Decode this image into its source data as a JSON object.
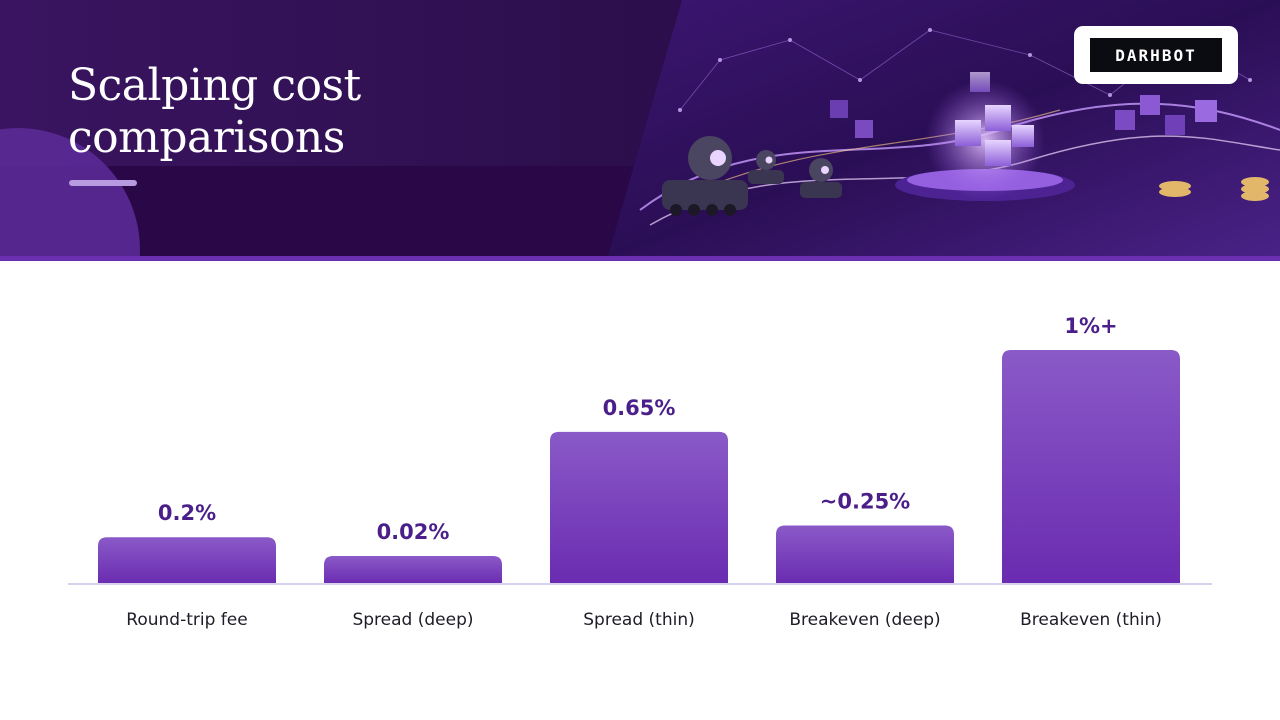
{
  "header": {
    "title_line1": "Scalping cost",
    "title_line2": "comparisons",
    "logo_text": "DARHBOT",
    "colors": {
      "banner": "#2d0f4e",
      "accent": "#6a30b0",
      "underline": "#b79ae0"
    }
  },
  "chart_data": {
    "type": "bar",
    "categories": [
      "Round-trip fee",
      "Spread (deep)",
      "Spread (thin)",
      "Breakeven (deep)",
      "Breakeven (thin)"
    ],
    "values": [
      0.2,
      0.02,
      0.65,
      0.25,
      1.0
    ],
    "data_labels": [
      "0.2%",
      "0.02%",
      "0.65%",
      "~0.25%",
      "1%+"
    ],
    "ylim": [
      0,
      1.0
    ],
    "grid": false,
    "colors": {
      "bar_top": "#8a5ac8",
      "bar_bottom": "#6a2bb0",
      "label": "#4b1f8a",
      "baseline": "#d9d2ec"
    }
  }
}
